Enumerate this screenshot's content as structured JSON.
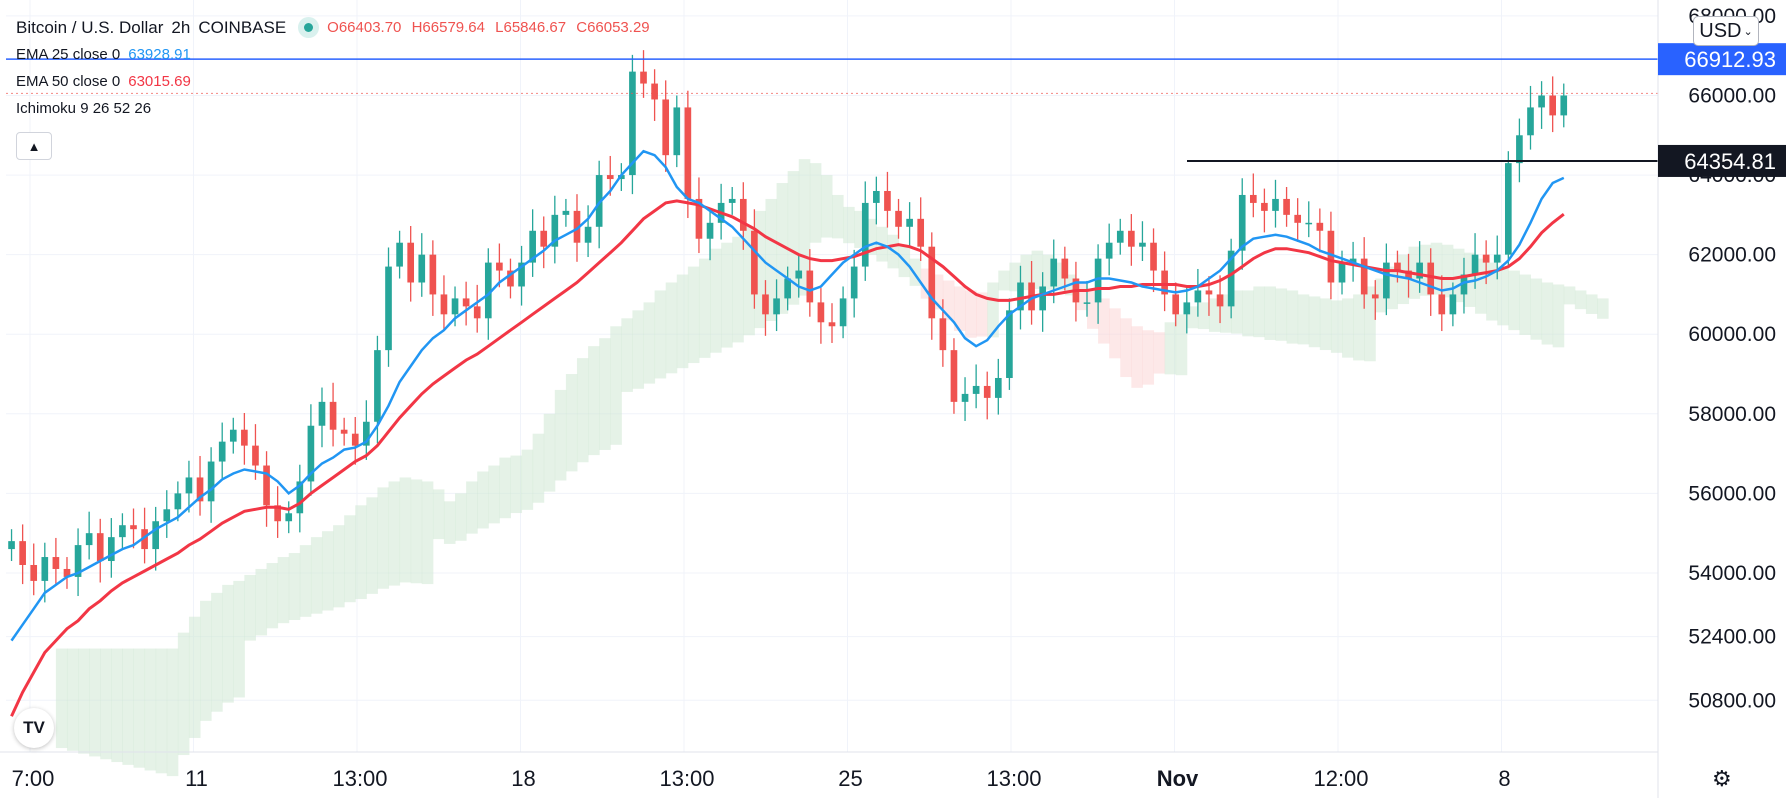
{
  "header": {
    "symbol": "Bitcoin / U.S. Dollar",
    "interval": "2h",
    "exchange": "COINBASE",
    "ohlc": {
      "open": "O66403.70",
      "high": "H66579.64",
      "low": "L65846.67",
      "close": "C66053.29"
    }
  },
  "indicators": [
    {
      "label": "EMA 25 close 0",
      "value": "63928.91",
      "color": "#2196f3"
    },
    {
      "label": "EMA 50 close 0",
      "value": "63015.69",
      "color": "#f23645"
    },
    {
      "label": "Ichimoku 9 26 52 26",
      "value": ""
    }
  ],
  "currency": "USD",
  "collapse_icon": "chevron-up-icon",
  "settings_icon": "gear-icon",
  "logo_text": "TV",
  "colors": {
    "up": "#26a69a",
    "down": "#ef5350",
    "ema25": "#2196f3",
    "ema50": "#f23645",
    "cloud_bull": "#cfe8d3",
    "cloud_bear": "#fbd5d5",
    "badge_blue": "#2962ff",
    "badge_black": "#131722"
  },
  "chart_data": {
    "type": "candlestick",
    "ylim": [
      49500,
      68400
    ],
    "y_ticks": [
      {
        "value": 68000,
        "label": "68000.00"
      },
      {
        "value": 66000,
        "label": "66000.00"
      },
      {
        "value": 64000,
        "label": "64000.00"
      },
      {
        "value": 62000,
        "label": "62000.00"
      },
      {
        "value": 60000,
        "label": "60000.00"
      },
      {
        "value": 58000,
        "label": "58000.00"
      },
      {
        "value": 56000,
        "label": "56000.00"
      },
      {
        "value": 54000,
        "label": "54000.00"
      },
      {
        "value": 52400,
        "label": "52400.00"
      },
      {
        "value": 50800,
        "label": "50800.00"
      }
    ],
    "x_ticks": [
      "7:00",
      "11",
      "13:00",
      "18",
      "13:00",
      "25",
      "13:00",
      "Nov",
      "12:00",
      "8"
    ],
    "price_levels": [
      {
        "value": 66912.93,
        "label": "66912.93",
        "style": "blue"
      },
      {
        "value": 64354.81,
        "label": "64354.81",
        "style": "black"
      },
      {
        "value": 66053.29,
        "label": "",
        "style": "current"
      }
    ],
    "series": [
      {
        "name": "BTCUSD close",
        "values": [
          54800,
          54200,
          53800,
          54400,
          54100,
          53900,
          54700,
          55000,
          54300,
          54900,
          55200,
          55100,
          54600,
          55300,
          55600,
          56000,
          56400,
          55800,
          56800,
          57300,
          57600,
          57200,
          56700,
          55700,
          55300,
          55500,
          56300,
          57700,
          58300,
          57600,
          57500,
          57200,
          57800,
          59600,
          61700,
          62300,
          61300,
          62000,
          61000,
          60500,
          60900,
          60700,
          60400,
          61800,
          61600,
          61200,
          61800,
          62600,
          62200,
          63000,
          63100,
          62300,
          62700,
          64000,
          63900,
          64000,
          66600,
          66300,
          65900,
          64500,
          65700,
          63400,
          62400,
          62800,
          63300,
          63400,
          62600,
          61000,
          60500,
          60900,
          61400,
          61600,
          60800,
          60300,
          60200,
          60900,
          61700,
          63300,
          63600,
          63100,
          62700,
          62900,
          62200,
          60400,
          59600,
          58300,
          58500,
          58700,
          58400,
          58900,
          60600,
          61300,
          60600,
          61200,
          61900,
          61400,
          60800,
          60800,
          61900,
          62300,
          62600,
          62200,
          62300,
          61600,
          61000,
          60500,
          60800,
          61100,
          61000,
          60700,
          62100,
          63500,
          63300,
          63100,
          63400,
          63000,
          62800,
          62800,
          62600,
          61300,
          61800,
          61900,
          61000,
          60900,
          61800,
          61600,
          61400,
          61800,
          61000,
          60500,
          61000,
          61500,
          62000,
          61800,
          62000,
          64300,
          65000,
          65700,
          66000,
          65500,
          66000
        ]
      },
      {
        "name": "EMA 25 close 0",
        "values": [
          52300,
          52700,
          53100,
          53500,
          53700,
          53900,
          54000,
          54150,
          54300,
          54450,
          54600,
          54700,
          54900,
          55100,
          55250,
          55400,
          55650,
          55900,
          56100,
          56350,
          56500,
          56600,
          56550,
          56500,
          56300,
          56000,
          56200,
          56500,
          56750,
          56900,
          57100,
          57150,
          57300,
          57700,
          58200,
          58800,
          59200,
          59600,
          59900,
          60100,
          60400,
          60600,
          60800,
          61000,
          61300,
          61500,
          61700,
          61900,
          62100,
          62350,
          62500,
          62650,
          62900,
          63300,
          63600,
          64000,
          64300,
          64600,
          64500,
          64200,
          63700,
          63400,
          63300,
          63100,
          62900,
          62700,
          62400,
          62100,
          61800,
          61600,
          61400,
          61200,
          61100,
          61200,
          61500,
          61800,
          62000,
          62200,
          62300,
          62200,
          62000,
          61700,
          61300,
          60900,
          60600,
          60300,
          59900,
          59700,
          59850,
          60200,
          60500,
          60700,
          60900,
          61000,
          61100,
          61200,
          61300,
          61300,
          61400,
          61400,
          61350,
          61300,
          61200,
          61150,
          61100,
          61050,
          61100,
          61200,
          61400,
          61600,
          61900,
          62200,
          62400,
          62450,
          62500,
          62450,
          62350,
          62250,
          62100,
          62000,
          61900,
          61800,
          61700,
          61600,
          61500,
          61450,
          61400,
          61300,
          61200,
          61100,
          61150,
          61300,
          61350,
          61450,
          61600,
          61850,
          62250,
          62800,
          63400,
          63800,
          63929
        ]
      },
      {
        "name": "EMA 50 close 0",
        "values": [
          50400,
          51000,
          51500,
          52000,
          52300,
          52600,
          52800,
          53100,
          53300,
          53550,
          53750,
          53900,
          54050,
          54200,
          54350,
          54500,
          54700,
          54850,
          55050,
          55250,
          55400,
          55550,
          55600,
          55650,
          55650,
          55600,
          55750,
          56000,
          56200,
          56400,
          56600,
          56800,
          56950,
          57200,
          57550,
          57900,
          58200,
          58500,
          58750,
          58950,
          59150,
          59350,
          59500,
          59700,
          59900,
          60100,
          60300,
          60500,
          60700,
          60900,
          61100,
          61300,
          61550,
          61800,
          62050,
          62300,
          62600,
          62900,
          63100,
          63300,
          63350,
          63300,
          63250,
          63150,
          63050,
          62950,
          62800,
          62650,
          62450,
          62300,
          62150,
          62000,
          61900,
          61850,
          61850,
          61900,
          61950,
          62050,
          62150,
          62200,
          62250,
          62200,
          62100,
          61900,
          61700,
          61450,
          61200,
          61000,
          60900,
          60850,
          60850,
          60900,
          60950,
          61000,
          61000,
          61050,
          61100,
          61100,
          61150,
          61150,
          61200,
          61200,
          61250,
          61250,
          61250,
          61250,
          61200,
          61200,
          61250,
          61350,
          61500,
          61700,
          61900,
          62050,
          62150,
          62150,
          62100,
          62050,
          61950,
          61850,
          61800,
          61750,
          61700,
          61650,
          61600,
          61600,
          61550,
          61500,
          61450,
          61400,
          61400,
          61450,
          61500,
          61550,
          61600,
          61700,
          61900,
          62200,
          62550,
          62800,
          63016
        ]
      }
    ]
  }
}
